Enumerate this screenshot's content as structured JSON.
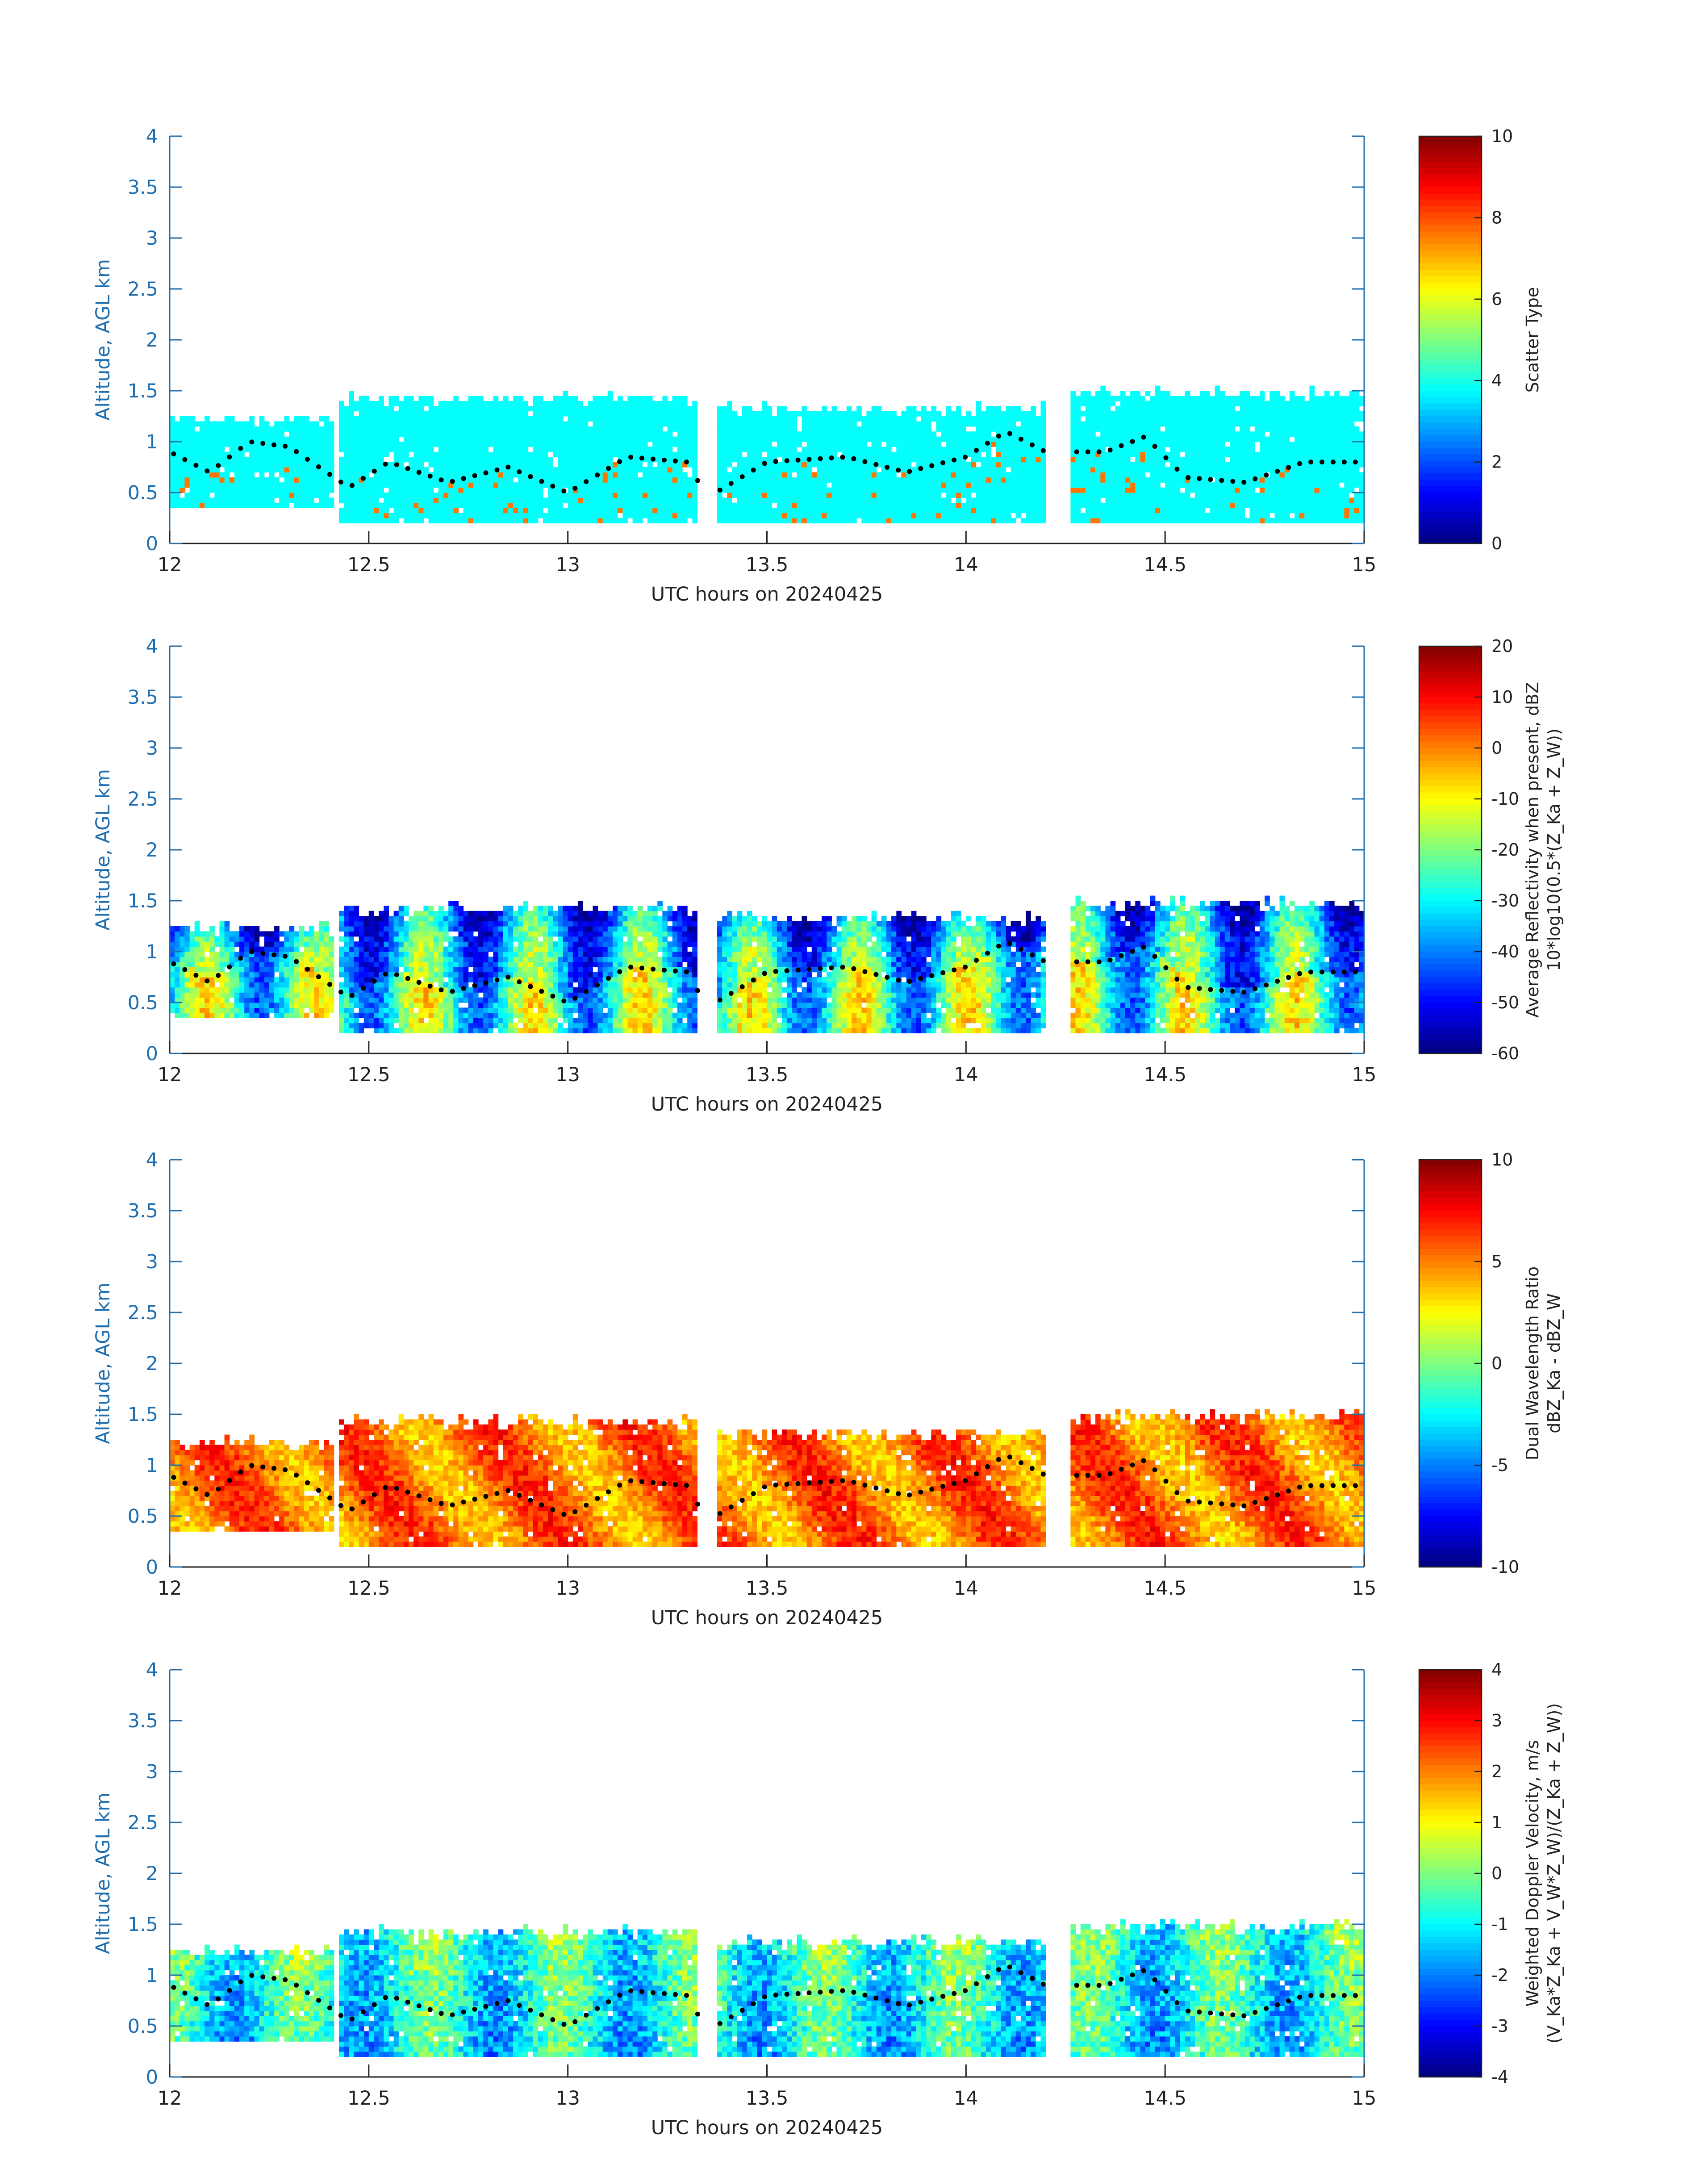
{
  "chart_data": [
    {
      "type": "heatmap",
      "xlabel": "UTC hours on 20240425",
      "ylabel": "Altitude, AGL km",
      "xlim": [
        12,
        15
      ],
      "ylim": [
        0,
        4
      ],
      "x_ticks": [
        "12",
        "12.5",
        "13",
        "13.5",
        "14",
        "14.5",
        "15"
      ],
      "y_ticks": [
        "0",
        "0.5",
        "1",
        "1.5",
        "2",
        "2.5",
        "3",
        "3.5",
        "4"
      ],
      "colorbar": {
        "label_lines": [
          "Scatter Type"
        ],
        "range": [
          0,
          10
        ],
        "ticks": [
          "0",
          "2",
          "4",
          "6",
          "8",
          "10"
        ],
        "colormap": "jet"
      },
      "field": "scatter_type",
      "base_value": 3.8,
      "cloud_base_dots": true
    },
    {
      "type": "heatmap",
      "xlabel": "UTC hours on 20240425",
      "ylabel": "Altitude, AGL km",
      "xlim": [
        12,
        15
      ],
      "ylim": [
        0,
        4
      ],
      "x_ticks": [
        "12",
        "12.5",
        "13",
        "13.5",
        "14",
        "14.5",
        "15"
      ],
      "y_ticks": [
        "0",
        "0.5",
        "1",
        "1.5",
        "2",
        "2.5",
        "3",
        "3.5",
        "4"
      ],
      "colorbar": {
        "label_lines": [
          "Average Reflectivity when present, dBZ",
          "10*log10(0.5*(Z_Ka + Z_W))"
        ],
        "range": [
          -60,
          20
        ],
        "ticks": [
          "-60",
          "-50",
          "-40",
          "-30",
          "-20",
          "-10",
          "0",
          "10",
          "20"
        ],
        "colormap": "jet"
      },
      "field": "reflectivity_dBZ",
      "cloud_base_dots": true
    },
    {
      "type": "heatmap",
      "xlabel": "UTC hours on 20240425",
      "ylabel": "Altitude, AGL km",
      "xlim": [
        12,
        15
      ],
      "ylim": [
        0,
        4
      ],
      "x_ticks": [
        "12",
        "12.5",
        "13",
        "13.5",
        "14",
        "14.5",
        "15"
      ],
      "y_ticks": [
        "0",
        "0.5",
        "1",
        "1.5",
        "2",
        "2.5",
        "3",
        "3.5",
        "4"
      ],
      "colorbar": {
        "label_lines": [
          "Dual Wavelength Ratio",
          "dBZ_Ka - dBZ_W"
        ],
        "range": [
          -10,
          10
        ],
        "ticks": [
          "-10",
          "-5",
          "0",
          "5",
          "10"
        ],
        "colormap": "jet"
      },
      "field": "dual_wavelength_ratio",
      "cloud_base_dots": true
    },
    {
      "type": "heatmap",
      "xlabel": "UTC hours on 20240425",
      "ylabel": "Altitude, AGL km",
      "xlim": [
        12,
        15
      ],
      "ylim": [
        0,
        4
      ],
      "x_ticks": [
        "12",
        "12.5",
        "13",
        "13.5",
        "14",
        "14.5",
        "15"
      ],
      "y_ticks": [
        "0",
        "0.5",
        "1",
        "1.5",
        "2",
        "2.5",
        "3",
        "3.5",
        "4"
      ],
      "colorbar": {
        "label_lines": [
          "Weighted Doppler Velocity, m/s",
          "(V_Ka*Z_Ka + V_W*Z_W)/(Z_Ka + Z_W))"
        ],
        "range": [
          -4,
          4
        ],
        "ticks": [
          "-4",
          "-3",
          "-2",
          "-1",
          "0",
          "1",
          "2",
          "3",
          "4"
        ],
        "colormap": "jet"
      },
      "field": "doppler_velocity_ms",
      "cloud_base_dots": true
    }
  ],
  "cloud_segments": [
    {
      "t0": 12.0,
      "t1": 12.41,
      "base_km": 0.35,
      "top_km": 1.2
    },
    {
      "t0": 12.42,
      "t1": 13.33,
      "base_km": 0.2,
      "top_km": 1.4
    },
    {
      "t0": 13.37,
      "t1": 14.2,
      "base_km": 0.2,
      "top_km": 1.3
    },
    {
      "t0": 14.26,
      "t1": 15.0,
      "base_km": 0.2,
      "top_km": 1.45
    }
  ],
  "cloud_base_line": [
    [
      12.0,
      0.9
    ],
    [
      12.1,
      0.7
    ],
    [
      12.2,
      1.0
    ],
    [
      12.3,
      0.95
    ],
    [
      12.45,
      0.55
    ],
    [
      12.55,
      0.8
    ],
    [
      12.7,
      0.6
    ],
    [
      12.85,
      0.75
    ],
    [
      13.0,
      0.5
    ],
    [
      13.15,
      0.85
    ],
    [
      13.3,
      0.8
    ],
    [
      13.35,
      0.45
    ],
    [
      13.5,
      0.8
    ],
    [
      13.7,
      0.85
    ],
    [
      13.85,
      0.7
    ],
    [
      14.0,
      0.85
    ],
    [
      14.1,
      1.1
    ],
    [
      14.2,
      0.9
    ],
    [
      14.35,
      0.9
    ],
    [
      14.45,
      1.05
    ],
    [
      14.55,
      0.65
    ],
    [
      14.7,
      0.6
    ],
    [
      14.85,
      0.8
    ],
    [
      15.0,
      0.8
    ]
  ]
}
